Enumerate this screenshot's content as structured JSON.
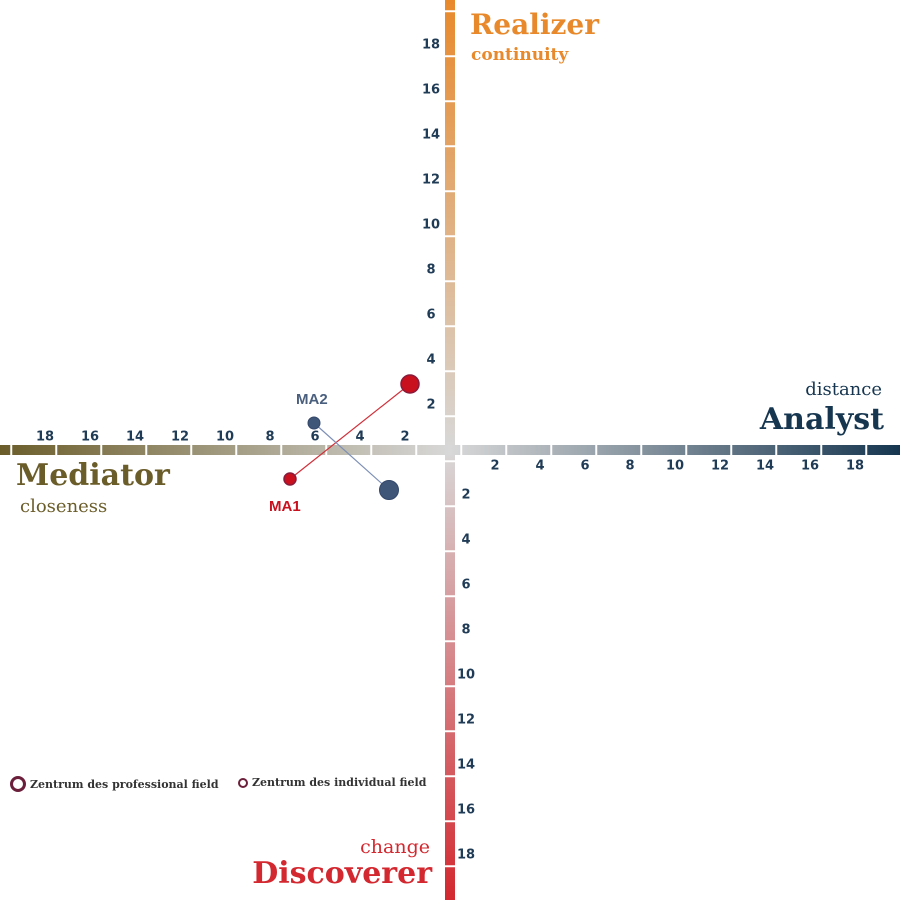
{
  "chart_data": {
    "type": "scatter",
    "title": "",
    "xlim": [
      -20,
      20
    ],
    "ylim": [
      -20,
      20
    ],
    "grid": false,
    "x_ticks_positive": [
      2,
      4,
      6,
      8,
      10,
      12,
      14,
      16,
      18
    ],
    "x_ticks_negative_labels": [
      18,
      16,
      14,
      12,
      10,
      8,
      6,
      4,
      2
    ],
    "y_ticks_positive": [
      18,
      16,
      14,
      12,
      10,
      8,
      6,
      4,
      2
    ],
    "y_ticks_negative_labels": [
      2,
      4,
      6,
      8,
      10,
      12,
      14,
      16,
      18
    ],
    "axis_poles": {
      "top": {
        "title": "Realizer",
        "subtitle": "continuity",
        "color": "#e8892b"
      },
      "right": {
        "title": "Analyst",
        "subtitle": "distance",
        "color": "#163650"
      },
      "bottom": {
        "title": "Discoverer",
        "subtitle": "change",
        "color": "#d3282f"
      },
      "left": {
        "title": "Mediator",
        "subtitle": "closeness",
        "color": "#6b5d2a"
      }
    },
    "series": [
      {
        "name": "MA1",
        "color": "#c8101e",
        "points": [
          {
            "role": "professional field center",
            "x": -1.8,
            "y": 2.9,
            "size": "large"
          },
          {
            "role": "individual field center",
            "x": -7.1,
            "y": -1.3,
            "size": "small"
          }
        ]
      },
      {
        "name": "MA2",
        "color": "#3f5679",
        "points": [
          {
            "role": "individual field center",
            "x": -6.0,
            "y": 1.2,
            "size": "small"
          },
          {
            "role": "professional field center",
            "x": -2.7,
            "y": -1.8,
            "size": "large"
          }
        ]
      }
    ],
    "legend": [
      {
        "label": "Zentrum des professional field",
        "marker": "large-ring"
      },
      {
        "label": "Zentrum des individual field",
        "marker": "small-ring"
      }
    ],
    "legend_position": "bottom-left"
  },
  "labels": {
    "top_title": "Realizer",
    "top_sub": "continuity",
    "right_title": "Analyst",
    "right_sub": "distance",
    "bottom_title": "Discoverer",
    "bottom_sub": "change",
    "left_title": "Mediator",
    "left_sub": "closeness",
    "ma1": "MA1",
    "ma2": "MA2",
    "legend_professional": "Zentrum des professional field",
    "legend_individual": "Zentrum des individual field"
  },
  "ticks": {
    "xl": [
      "18",
      "16",
      "14",
      "12",
      "10",
      "8",
      "6",
      "4",
      "2"
    ],
    "xr": [
      "2",
      "4",
      "6",
      "8",
      "10",
      "12",
      "14",
      "16",
      "18"
    ],
    "yt": [
      "18",
      "16",
      "14",
      "12",
      "10",
      "8",
      "6",
      "4",
      "2"
    ],
    "yb": [
      "2",
      "4",
      "6",
      "8",
      "10",
      "12",
      "14",
      "16",
      "18"
    ]
  }
}
